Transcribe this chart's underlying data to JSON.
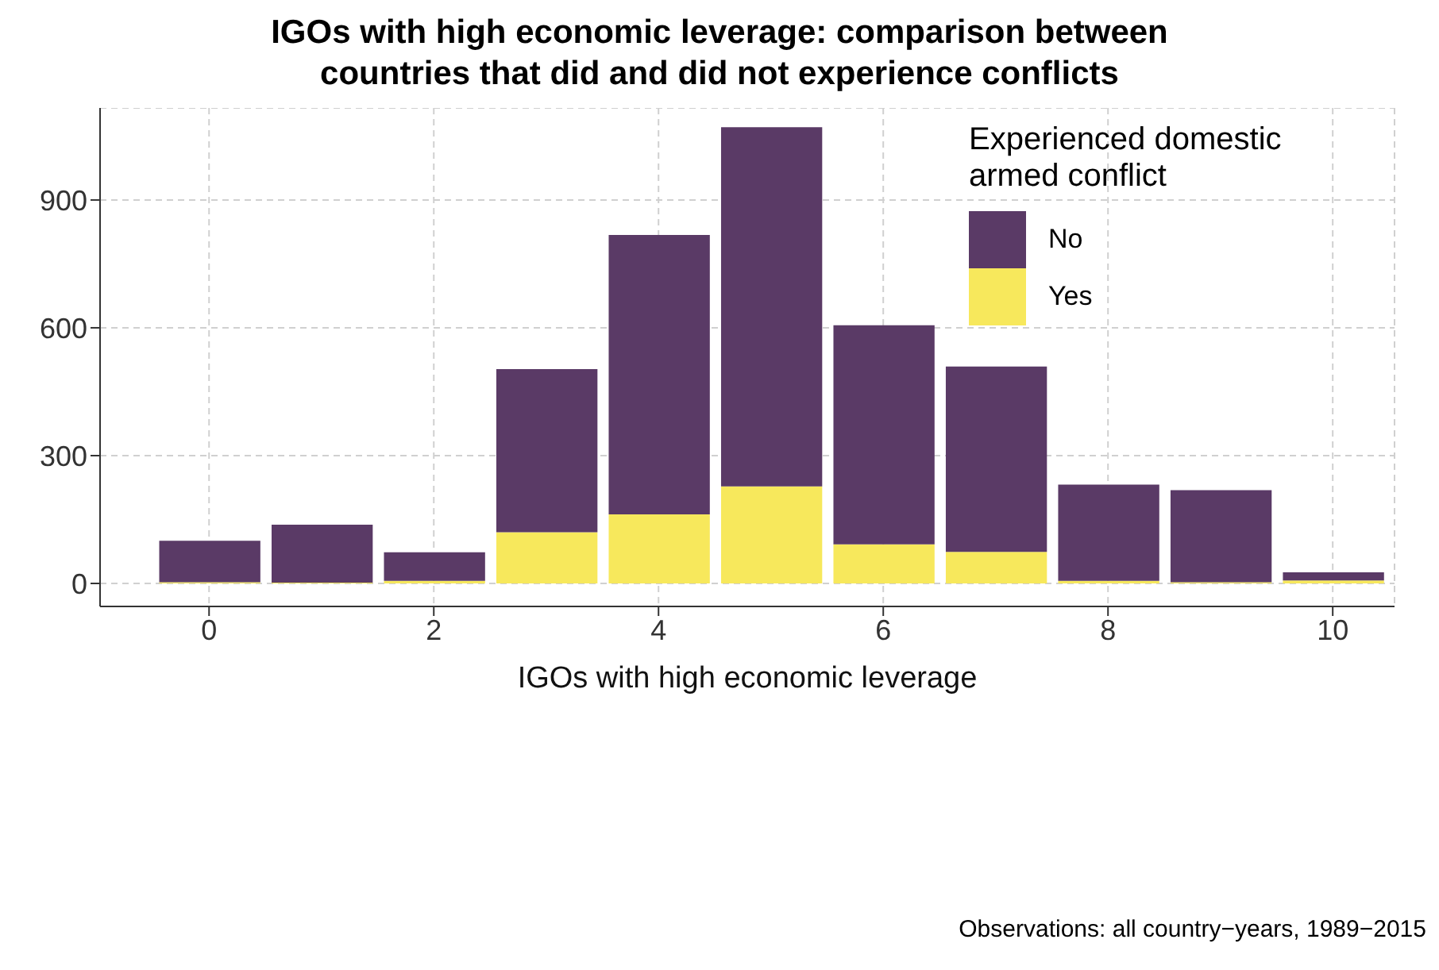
{
  "chart_data": {
    "type": "bar",
    "title": "IGOs with high economic leverage: comparison between countries that did and did not experience conflicts",
    "xlabel": "IGOs with high economic leverage",
    "legend_title": "Experienced domestic armed conflict",
    "annotations": [
      "Observations: all country−years, 1989−2015"
    ],
    "x": [
      0,
      1,
      2,
      3,
      4,
      5,
      6,
      7,
      8,
      9,
      10
    ],
    "stacked": true,
    "series": [
      {
        "name": "Yes",
        "color": "#f7e85c",
        "values": [
          3,
          2,
          6,
          120,
          162,
          228,
          92,
          74,
          6,
          3,
          7
        ]
      },
      {
        "name": "No",
        "color": "#5a3a66",
        "values": [
          97,
          136,
          67,
          383,
          656,
          843,
          514,
          435,
          226,
          216,
          19
        ]
      }
    ],
    "xlim": [
      -0.97,
      10.55
    ],
    "xticks": [
      0,
      2,
      4,
      6,
      8,
      10
    ],
    "ylim": [
      -54,
      1116
    ],
    "yticks": [
      0,
      300,
      600,
      900
    ],
    "grid": true,
    "legend": "top right"
  }
}
